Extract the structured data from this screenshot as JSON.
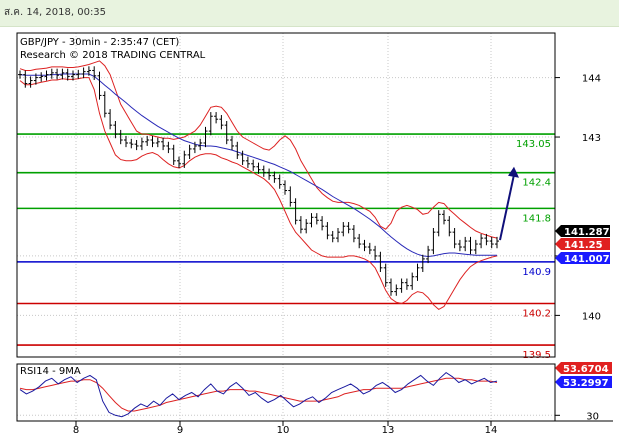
{
  "header": {
    "date_label": "ส.ค. 14, 2018, 00:35"
  },
  "chart_data": [
    {
      "type": "line",
      "title": "GBP/JPY - 30min - 2:35:47 (CET)",
      "subtitle": "Research © 2018 TRADING CENTRAL",
      "x_ticks": [
        "8",
        "9",
        "10",
        "13",
        "14"
      ],
      "y_ticks": [
        144,
        143,
        141,
        140
      ],
      "ylim": [
        139.3,
        144.75
      ],
      "grid": true,
      "levels": [
        {
          "value": 143.05,
          "label": "143.05",
          "color": "#00a000"
        },
        {
          "value": 142.4,
          "label": "142.4",
          "color": "#00a000"
        },
        {
          "value": 141.8,
          "label": "141.8",
          "color": "#00a000"
        },
        {
          "value": 140.9,
          "label": "140.9",
          "color": "#0000cc"
        },
        {
          "value": 140.2,
          "label": "140.2",
          "color": "#cc0000"
        },
        {
          "value": 139.5,
          "label": "139.5",
          "color": "#cc0000"
        }
      ],
      "price_tags": [
        {
          "value": 141.287,
          "label": "141.287",
          "bg": "#000000",
          "fg": "#ffffff"
        },
        {
          "value": 141.25,
          "label": "141.25",
          "bg": "#e02020",
          "fg": "#ffffff"
        },
        {
          "value": 141.007,
          "label": "141.007",
          "bg": "#1a1aff",
          "fg": "#ffffff"
        }
      ],
      "price_series": [
        144.05,
        143.9,
        143.95,
        144.0,
        144.02,
        144.05,
        144.08,
        144.04,
        144.08,
        144.02,
        144.05,
        144.06,
        144.1,
        144.12,
        144.03,
        143.7,
        143.4,
        143.2,
        143.05,
        142.95,
        142.9,
        142.88,
        142.85,
        142.92,
        142.95,
        142.9,
        142.92,
        142.85,
        142.8,
        142.6,
        142.55,
        142.7,
        142.8,
        142.85,
        142.9,
        143.1,
        143.35,
        143.3,
        143.2,
        142.95,
        142.85,
        142.7,
        142.6,
        142.55,
        142.5,
        142.45,
        142.4,
        142.35,
        142.3,
        142.2,
        142.1,
        141.9,
        141.6,
        141.45,
        141.55,
        141.65,
        141.6,
        141.5,
        141.35,
        141.3,
        141.4,
        141.5,
        141.45,
        141.3,
        141.2,
        141.15,
        141.1,
        141.0,
        140.8,
        140.55,
        140.4,
        140.45,
        140.55,
        140.5,
        140.65,
        140.8,
        140.95,
        141.1,
        141.4,
        141.7,
        141.6,
        141.4,
        141.2,
        141.15,
        141.25,
        141.1,
        141.2,
        141.3,
        141.25,
        141.2,
        141.25
      ],
      "ma_series": [
        144.05,
        144.04,
        144.04,
        144.04,
        144.04,
        144.04,
        144.05,
        144.05,
        144.06,
        144.06,
        144.06,
        144.06,
        144.06,
        144.06,
        144.02,
        143.95,
        143.87,
        143.8,
        143.72,
        143.65,
        143.58,
        143.5,
        143.43,
        143.36,
        143.3,
        143.24,
        143.18,
        143.13,
        143.08,
        143.03,
        142.98,
        142.94,
        142.91,
        142.88,
        142.86,
        142.85,
        142.85,
        142.84,
        142.82,
        142.8,
        142.78,
        142.75,
        142.72,
        142.69,
        142.66,
        142.63,
        142.6,
        142.57,
        142.54,
        142.5,
        142.46,
        142.42,
        142.37,
        142.32,
        142.27,
        142.22,
        142.17,
        142.12,
        142.06,
        142.0,
        141.95,
        141.9,
        141.85,
        141.8,
        141.74,
        141.68,
        141.62,
        141.55,
        141.48,
        141.4,
        141.32,
        141.25,
        141.18,
        141.12,
        141.07,
        141.03,
        141.0,
        140.99,
        141.0,
        141.02,
        141.04,
        141.05,
        141.05,
        141.04,
        141.03,
        141.02,
        141.01,
        141.01,
        141.01,
        141.01,
        141.01
      ],
      "bb_upper_series": [
        144.15,
        144.12,
        144.12,
        144.14,
        144.15,
        144.16,
        144.18,
        144.18,
        144.18,
        144.17,
        144.17,
        144.18,
        144.2,
        144.22,
        144.25,
        144.28,
        144.2,
        144.05,
        143.8,
        143.55,
        143.4,
        143.25,
        143.1,
        143.05,
        143.05,
        143.02,
        143.0,
        142.98,
        142.98,
        142.96,
        142.98,
        143.0,
        143.05,
        143.1,
        143.2,
        143.35,
        143.5,
        143.52,
        143.5,
        143.4,
        143.25,
        143.1,
        143.0,
        142.95,
        142.9,
        142.85,
        142.8,
        142.78,
        142.85,
        142.95,
        143.02,
        142.95,
        142.8,
        142.6,
        142.45,
        142.3,
        142.15,
        142.05,
        141.98,
        141.92,
        141.9,
        141.9,
        141.9,
        141.88,
        141.85,
        141.8,
        141.75,
        141.65,
        141.5,
        141.45,
        141.55,
        141.75,
        141.82,
        141.85,
        141.82,
        141.78,
        141.7,
        141.72,
        141.82,
        141.9,
        141.88,
        141.78,
        141.7,
        141.62,
        141.55,
        141.48,
        141.42,
        141.38,
        141.35,
        141.32,
        141.3
      ],
      "bb_lower_series": [
        143.95,
        143.88,
        143.88,
        143.9,
        143.92,
        143.94,
        143.96,
        143.96,
        143.98,
        143.97,
        143.97,
        143.98,
        144.0,
        144.0,
        143.8,
        143.4,
        143.1,
        142.9,
        142.7,
        142.62,
        142.6,
        142.6,
        142.62,
        142.68,
        142.72,
        142.74,
        142.7,
        142.62,
        142.55,
        142.5,
        142.48,
        142.52,
        142.6,
        142.66,
        142.7,
        142.72,
        142.72,
        142.7,
        142.65,
        142.62,
        142.58,
        142.55,
        142.5,
        142.45,
        142.4,
        142.35,
        142.3,
        142.22,
        142.12,
        141.95,
        141.75,
        141.55,
        141.4,
        141.3,
        141.2,
        141.1,
        141.05,
        141.0,
        140.98,
        140.98,
        140.98,
        140.98,
        141.0,
        141.0,
        140.98,
        140.95,
        140.9,
        140.8,
        140.62,
        140.42,
        140.28,
        140.22,
        140.2,
        140.25,
        140.35,
        140.4,
        140.38,
        140.3,
        140.18,
        140.1,
        140.15,
        140.3,
        140.45,
        140.6,
        140.72,
        140.82,
        140.88,
        140.92,
        140.95,
        140.98,
        141.0
      ],
      "forecast": {
        "from": 141.25,
        "to": 142.4
      }
    },
    {
      "type": "line",
      "title": "RSI14 - 9MA",
      "y_ticks": [
        30
      ],
      "ylim": [
        26,
        66
      ],
      "value_tags": [
        {
          "value": 53.6704,
          "label": "53.6704",
          "bg": "#e02020",
          "fg": "#ffffff"
        },
        {
          "value": 53.2997,
          "label": "53.2997",
          "bg": "#1a1aff",
          "fg": "#ffffff"
        }
      ],
      "rsi_series": [
        48,
        45,
        47,
        50,
        54,
        56,
        52,
        55,
        57,
        53,
        56,
        58,
        55,
        40,
        32,
        30,
        29,
        31,
        35,
        38,
        36,
        40,
        37,
        42,
        45,
        41,
        44,
        46,
        43,
        48,
        52,
        47,
        45,
        50,
        53,
        49,
        44,
        46,
        42,
        39,
        41,
        44,
        40,
        36,
        38,
        41,
        43,
        39,
        42,
        46,
        48,
        50,
        52,
        49,
        45,
        47,
        51,
        53,
        50,
        46,
        48,
        52,
        55,
        58,
        54,
        51,
        56,
        60,
        57,
        53,
        55,
        52,
        54,
        56,
        53,
        54
      ],
      "ma_series": [
        49,
        48,
        48,
        49,
        50,
        51,
        52,
        53,
        54,
        54,
        55,
        55,
        53,
        49,
        44,
        39,
        35,
        33,
        33,
        34,
        35,
        36,
        37,
        39,
        40,
        41,
        42,
        43,
        44,
        45,
        46,
        47,
        47,
        48,
        48,
        48,
        47,
        47,
        46,
        45,
        44,
        43,
        42,
        41,
        40,
        40,
        40,
        40,
        41,
        42,
        43,
        45,
        46,
        47,
        48,
        48,
        49,
        49,
        49,
        49,
        49,
        50,
        51,
        52,
        53,
        54,
        55,
        56,
        56,
        56,
        55,
        55,
        54,
        54,
        54,
        53
      ]
    }
  ]
}
